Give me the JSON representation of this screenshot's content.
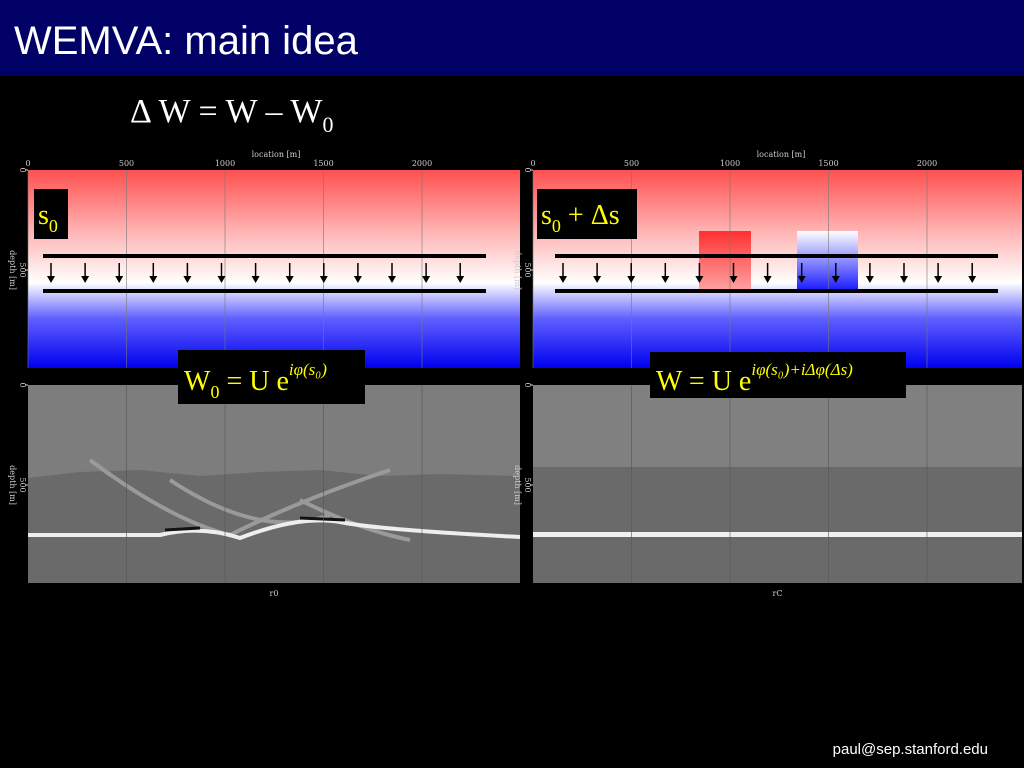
{
  "title": "WEMVA: main idea",
  "equation": {
    "text": "Δ W = W – W",
    "subscript": "0"
  },
  "top_panels": [
    {
      "x_label": "location [m]",
      "x_ticks": [
        0,
        500,
        1000,
        1500,
        2000
      ],
      "y_label": "depth [m]",
      "y_ticks": [
        0,
        500
      ],
      "annotation": {
        "main": "s",
        "sub": "0"
      },
      "formula": {
        "main": "W",
        "sub": "0",
        "rest": " = U e",
        "sup": "iφ(s₀)"
      }
    },
    {
      "x_label": "location [m]",
      "x_ticks": [
        0,
        500,
        1000,
        1500,
        2000
      ],
      "y_label": "depth [m]",
      "y_ticks": [
        0,
        500
      ],
      "annotation": {
        "main": "s",
        "sub": "0",
        "rest": " + Δs"
      },
      "formula": {
        "main": "W = U e",
        "sup": "iφ(s₀)+iΔφ(Δs)"
      }
    }
  ],
  "bottom_panels": [
    {
      "y_label": "depth [m]",
      "y_ticks": [
        0,
        500
      ],
      "caption": "r0"
    },
    {
      "y_label": "depth [m]",
      "y_ticks": [
        0,
        500
      ],
      "caption": "rC"
    }
  ],
  "footer": "paul@sep.stanford.edu"
}
